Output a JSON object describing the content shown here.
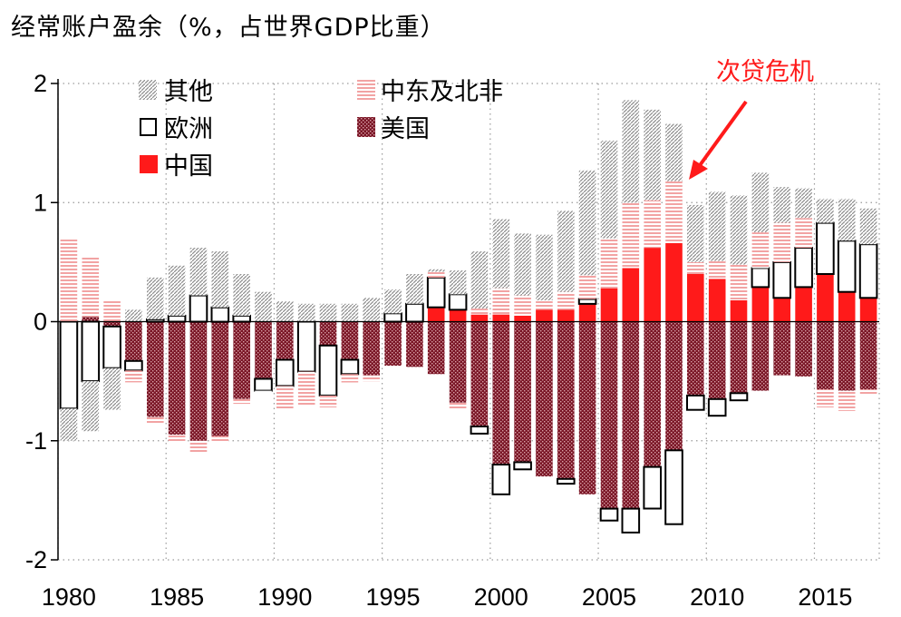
{
  "chart_title": "经常账户盈余（%，占世界GDP比重）",
  "colors": {
    "china": "#ff1a1a",
    "usa": "#8b1a2b",
    "mideast": "#f2a3a3",
    "other": "#8c8c8c",
    "europe_stroke": "#000000",
    "annotation": "#ff1a1a"
  },
  "annotation": {
    "text": "次贷危机",
    "target_year": 2008
  },
  "chart_data": {
    "type": "bar",
    "title": "经常账户盈余（%，占世界GDP比重）",
    "xlabel": "",
    "ylabel": "",
    "ylim": [
      -2,
      2
    ],
    "grid": true,
    "legend_position": "top-left",
    "x_ticks": [
      "1980",
      "1985",
      "1990",
      "1995",
      "2000",
      "2005",
      "2010",
      "2015"
    ],
    "y_ticks": [
      "2",
      "1",
      "0",
      "-1",
      "-2"
    ],
    "categories": [
      1980,
      1981,
      1982,
      1983,
      1984,
      1985,
      1986,
      1987,
      1988,
      1989,
      1990,
      1991,
      1992,
      1993,
      1994,
      1995,
      1996,
      1997,
      1998,
      1999,
      2000,
      2001,
      2002,
      2003,
      2004,
      2005,
      2006,
      2007,
      2008,
      2009,
      2010,
      2011,
      2012,
      2013,
      2014,
      2015,
      2016,
      2017
    ],
    "series": [
      {
        "name": "其他",
        "key": "other",
        "values": [
          -0.27,
          -0.42,
          -0.35,
          0.1,
          0.35,
          0.42,
          0.4,
          0.47,
          0.35,
          0.25,
          0.17,
          0.15,
          0.15,
          0.15,
          0.2,
          0.2,
          0.25,
          0.02,
          0.2,
          0.48,
          0.58,
          0.52,
          0.55,
          0.68,
          0.88,
          0.82,
          0.86,
          0.76,
          0.48,
          0.48,
          0.58,
          0.58,
          0.5,
          0.3,
          0.25,
          0.2,
          0.35,
          0.3
        ]
      },
      {
        "name": "中东及北非",
        "key": "mideast",
        "values": [
          0.7,
          0.5,
          0.18,
          -0.1,
          -0.06,
          -0.06,
          -0.1,
          -0.05,
          -0.04,
          -0.01,
          -0.2,
          -0.28,
          -0.1,
          -0.07,
          -0.05,
          0.0,
          0.0,
          0.05,
          -0.05,
          0.05,
          0.22,
          0.17,
          0.08,
          0.15,
          0.2,
          0.42,
          0.55,
          0.4,
          0.52,
          0.1,
          0.15,
          0.3,
          0.3,
          0.33,
          0.25,
          -0.15,
          -0.17,
          -0.05
        ]
      },
      {
        "name": "欧洲",
        "key": "europe",
        "values": [
          -0.73,
          -0.5,
          -0.35,
          -0.08,
          0.02,
          0.05,
          0.22,
          0.12,
          0.05,
          -0.1,
          -0.22,
          -0.42,
          -0.42,
          -0.12,
          0.0,
          0.07,
          0.15,
          0.25,
          0.13,
          -0.06,
          -0.25,
          -0.06,
          0.0,
          -0.04,
          0.04,
          -0.1,
          -0.2,
          -0.35,
          -0.62,
          -0.12,
          -0.14,
          -0.06,
          0.16,
          0.3,
          0.33,
          0.43,
          0.43,
          0.45
        ]
      },
      {
        "name": "美国",
        "key": "usa",
        "values": [
          0.0,
          0.04,
          -0.04,
          -0.33,
          -0.8,
          -0.95,
          -1.0,
          -0.96,
          -0.65,
          -0.48,
          -0.32,
          0.0,
          -0.2,
          -0.32,
          -0.45,
          -0.37,
          -0.38,
          -0.44,
          -0.68,
          -0.88,
          -1.2,
          -1.18,
          -1.3,
          -1.32,
          -1.45,
          -1.57,
          -1.57,
          -1.22,
          -1.08,
          -0.62,
          -0.65,
          -0.6,
          -0.58,
          -0.45,
          -0.46,
          -0.57,
          -0.58,
          -0.57
        ]
      },
      {
        "name": "中国",
        "key": "china",
        "values": [
          0.0,
          0.0,
          0.0,
          0.0,
          0.0,
          0.0,
          0.0,
          0.0,
          0.0,
          0.0,
          0.0,
          0.0,
          0.0,
          0.0,
          0.0,
          0.0,
          0.0,
          0.12,
          0.1,
          0.06,
          0.06,
          0.05,
          0.1,
          0.1,
          0.15,
          0.28,
          0.45,
          0.62,
          0.66,
          0.4,
          0.36,
          0.18,
          0.29,
          0.2,
          0.29,
          0.4,
          0.25,
          0.2
        ]
      }
    ]
  }
}
